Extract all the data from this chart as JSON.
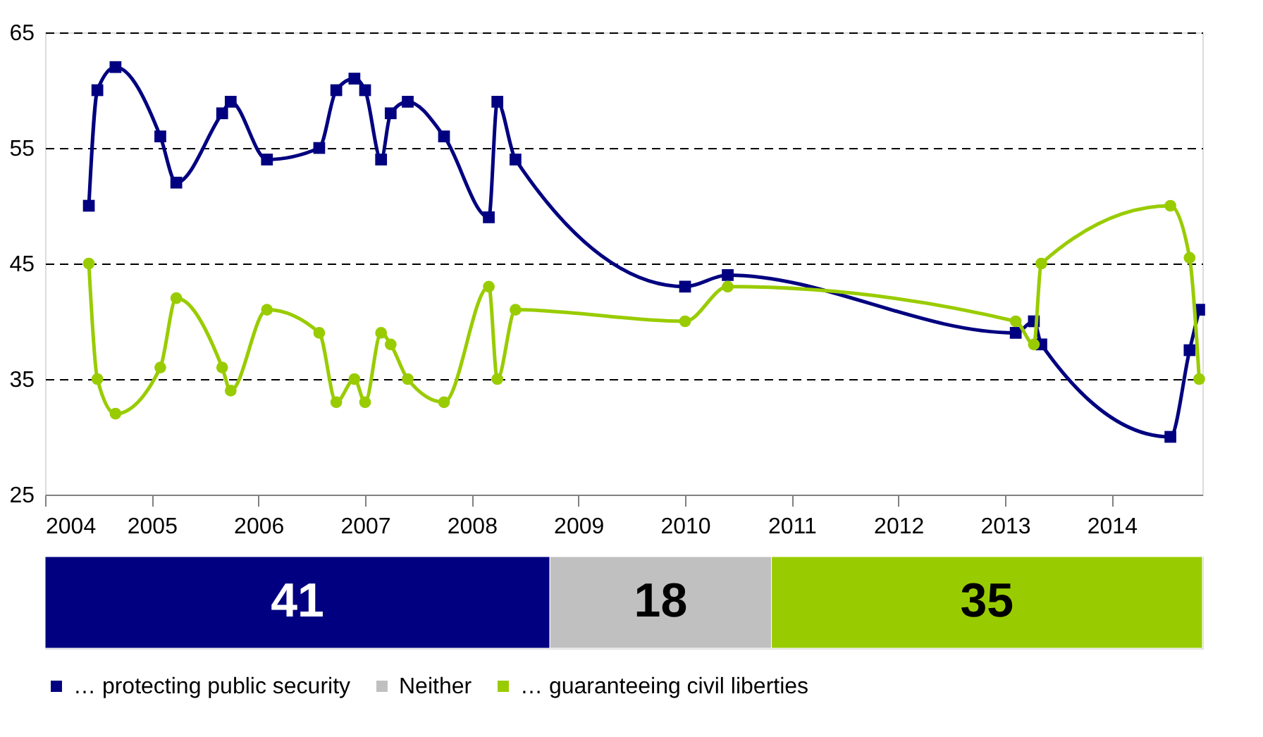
{
  "chart_data": [
    {
      "type": "line",
      "x": [
        2004.41,
        2004.49,
        2004.66,
        2005.08,
        2005.23,
        2005.66,
        2005.74,
        2006.08,
        2006.57,
        2006.73,
        2006.9,
        2007.0,
        2007.15,
        2007.24,
        2007.4,
        2007.74,
        2008.16,
        2008.24,
        2008.41,
        2010.0,
        2010.4,
        2013.1,
        2013.27,
        2013.34,
        2014.55,
        2014.73,
        2014.82
      ],
      "series": [
        {
          "color": "#000080",
          "marker": "square",
          "values": [
            50,
            60,
            62,
            56,
            52,
            58,
            59,
            54,
            55,
            60,
            61,
            60,
            54,
            58,
            59,
            56,
            49,
            59,
            54,
            43,
            44,
            39,
            40,
            38,
            30,
            37.5,
            41
          ]
        },
        {
          "color": "#99cc00",
          "marker": "circle",
          "values": [
            45,
            35,
            32,
            36,
            42,
            36,
            34,
            41,
            39,
            33,
            35,
            33,
            39,
            38,
            35,
            33,
            43,
            35,
            41,
            40,
            43,
            40,
            38,
            45,
            50,
            45.5,
            35
          ]
        }
      ],
      "xlim": [
        2004,
        2014.85
      ],
      "xticks": [
        2004,
        2005,
        2006,
        2007,
        2008,
        2009,
        2010,
        2011,
        2012,
        2013,
        2014
      ],
      "ylim": [
        25,
        65
      ],
      "yticks": [
        25,
        35,
        45,
        55,
        65
      ],
      "grid": "y",
      "line_style": "solid"
    },
    {
      "type": "bar",
      "orientation": "horizontal",
      "stacked": true,
      "categories": [
        null
      ],
      "data_labels": true,
      "legend": "bottom",
      "series": [
        {
          "name": "… protecting public security",
          "color": "#000080",
          "values": [
            41
          ]
        },
        {
          "name": "Neither",
          "color": "#c0c0c0",
          "values": [
            18
          ]
        },
        {
          "name": "… guaranteeing civil liberties",
          "color": "#99cc00",
          "values": [
            35
          ]
        }
      ]
    }
  ]
}
